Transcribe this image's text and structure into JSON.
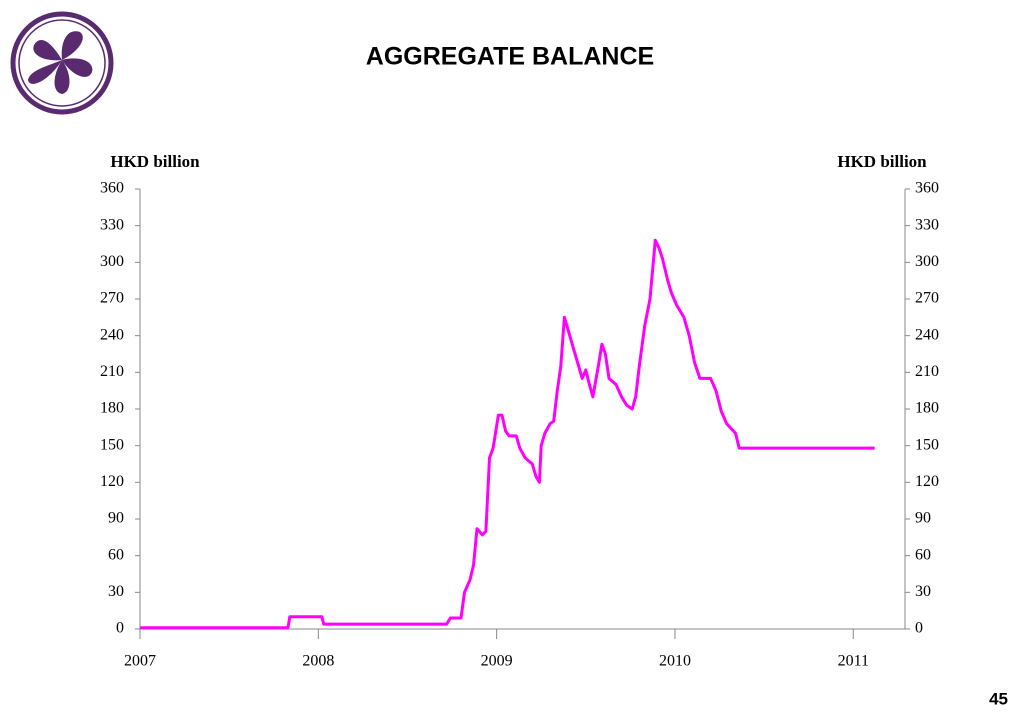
{
  "page_number": "45",
  "chart_data": {
    "type": "line",
    "title": "AGGREGATE BALANCE",
    "y_label": "HKD billion",
    "y2_label": "HKD billion",
    "xlim": [
      2007,
      2011.29
    ],
    "xticks": [
      2007,
      2008,
      2009,
      2010,
      2011
    ],
    "ylim": [
      0,
      360
    ],
    "yticks": [
      0,
      30,
      60,
      90,
      120,
      150,
      180,
      210,
      240,
      270,
      300,
      330,
      360
    ],
    "y2lim": [
      0,
      360
    ],
    "y2ticks": [
      0,
      30,
      60,
      90,
      120,
      150,
      180,
      210,
      240,
      270,
      300,
      330,
      360
    ],
    "series": [
      {
        "color": "#ff00ff",
        "x": [
          2007.0,
          2007.83,
          2007.84,
          2008.02,
          2008.03,
          2008.72,
          2008.74,
          2008.8,
          2008.82,
          2008.85,
          2008.87,
          2008.89,
          2008.92,
          2008.94,
          2008.96,
          2008.98,
          2009.01,
          2009.03,
          2009.05,
          2009.07,
          2009.11,
          2009.13,
          2009.16,
          2009.2,
          2009.22,
          2009.24,
          2009.25,
          2009.27,
          2009.3,
          2009.32,
          2009.34,
          2009.36,
          2009.38,
          2009.4,
          2009.43,
          2009.46,
          2009.48,
          2009.5,
          2009.52,
          2009.54,
          2009.57,
          2009.59,
          2009.61,
          2009.63,
          2009.67,
          2009.7,
          2009.73,
          2009.76,
          2009.78,
          2009.8,
          2009.83,
          2009.86,
          2009.89,
          2009.91,
          2009.93,
          2009.96,
          2009.98,
          2010.01,
          2010.05,
          2010.08,
          2010.11,
          2010.14,
          2010.2,
          2010.23,
          2010.26,
          2010.29,
          2010.34,
          2010.36,
          2011.12
        ],
        "values": [
          1,
          1,
          10,
          10,
          4,
          4,
          9,
          9,
          30,
          40,
          52,
          82,
          77,
          80,
          140,
          148,
          175,
          175,
          162,
          158,
          158,
          148,
          140,
          135,
          125,
          120,
          150,
          160,
          168,
          170,
          195,
          215,
          255,
          245,
          230,
          215,
          205,
          212,
          200,
          190,
          215,
          233,
          225,
          205,
          200,
          190,
          183,
          180,
          190,
          215,
          248,
          270,
          318,
          312,
          303,
          285,
          275,
          265,
          255,
          240,
          218,
          205,
          205,
          195,
          178,
          168,
          160,
          148,
          148
        ]
      }
    ]
  }
}
